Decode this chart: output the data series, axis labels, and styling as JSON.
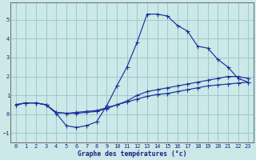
{
  "title": "Graphe des températures (°c)",
  "bg_color": "#cce8e8",
  "grid_color": "#99cccc",
  "line_color": "#1a2f9e",
  "x_ticks": [
    0,
    1,
    2,
    3,
    4,
    5,
    6,
    7,
    8,
    9,
    10,
    11,
    12,
    13,
    14,
    15,
    16,
    17,
    18,
    19,
    20,
    21,
    22,
    23
  ],
  "y_ticks": [
    -1,
    0,
    1,
    2,
    3,
    4,
    5
  ],
  "ylim": [
    -1.5,
    5.9
  ],
  "xlim": [
    -0.5,
    23.5
  ],
  "curve1_x": [
    0,
    1,
    2,
    3,
    4,
    5,
    6,
    7,
    8,
    9,
    10,
    11,
    12,
    13,
    14,
    15,
    16,
    17,
    18,
    19,
    20,
    21,
    22,
    23
  ],
  "curve1_y": [
    0.5,
    0.6,
    0.6,
    0.5,
    0.05,
    -0.6,
    -0.7,
    -0.6,
    -0.4,
    0.45,
    1.5,
    2.5,
    3.8,
    5.3,
    5.3,
    5.2,
    4.7,
    4.4,
    3.6,
    3.5,
    2.9,
    2.5,
    1.9,
    1.7
  ],
  "curve2_x": [
    0,
    1,
    2,
    3,
    4,
    5,
    6,
    7,
    8,
    9,
    10,
    11,
    12,
    13,
    14,
    15,
    16,
    17,
    18,
    19,
    20,
    21,
    22,
    23
  ],
  "curve2_y": [
    0.5,
    0.6,
    0.6,
    0.5,
    0.1,
    0.05,
    0.05,
    0.1,
    0.15,
    0.3,
    0.5,
    0.7,
    1.0,
    1.2,
    1.3,
    1.4,
    1.5,
    1.6,
    1.7,
    1.8,
    1.9,
    2.0,
    2.0,
    1.9
  ],
  "curve3_x": [
    0,
    1,
    2,
    3,
    4,
    5,
    6,
    7,
    8,
    9,
    10,
    11,
    12,
    13,
    14,
    15,
    16,
    17,
    18,
    19,
    20,
    21,
    22,
    23
  ],
  "curve3_y": [
    0.5,
    0.6,
    0.6,
    0.5,
    0.1,
    0.05,
    0.1,
    0.15,
    0.2,
    0.35,
    0.5,
    0.65,
    0.8,
    0.95,
    1.05,
    1.1,
    1.2,
    1.3,
    1.4,
    1.5,
    1.55,
    1.6,
    1.65,
    1.7
  ]
}
